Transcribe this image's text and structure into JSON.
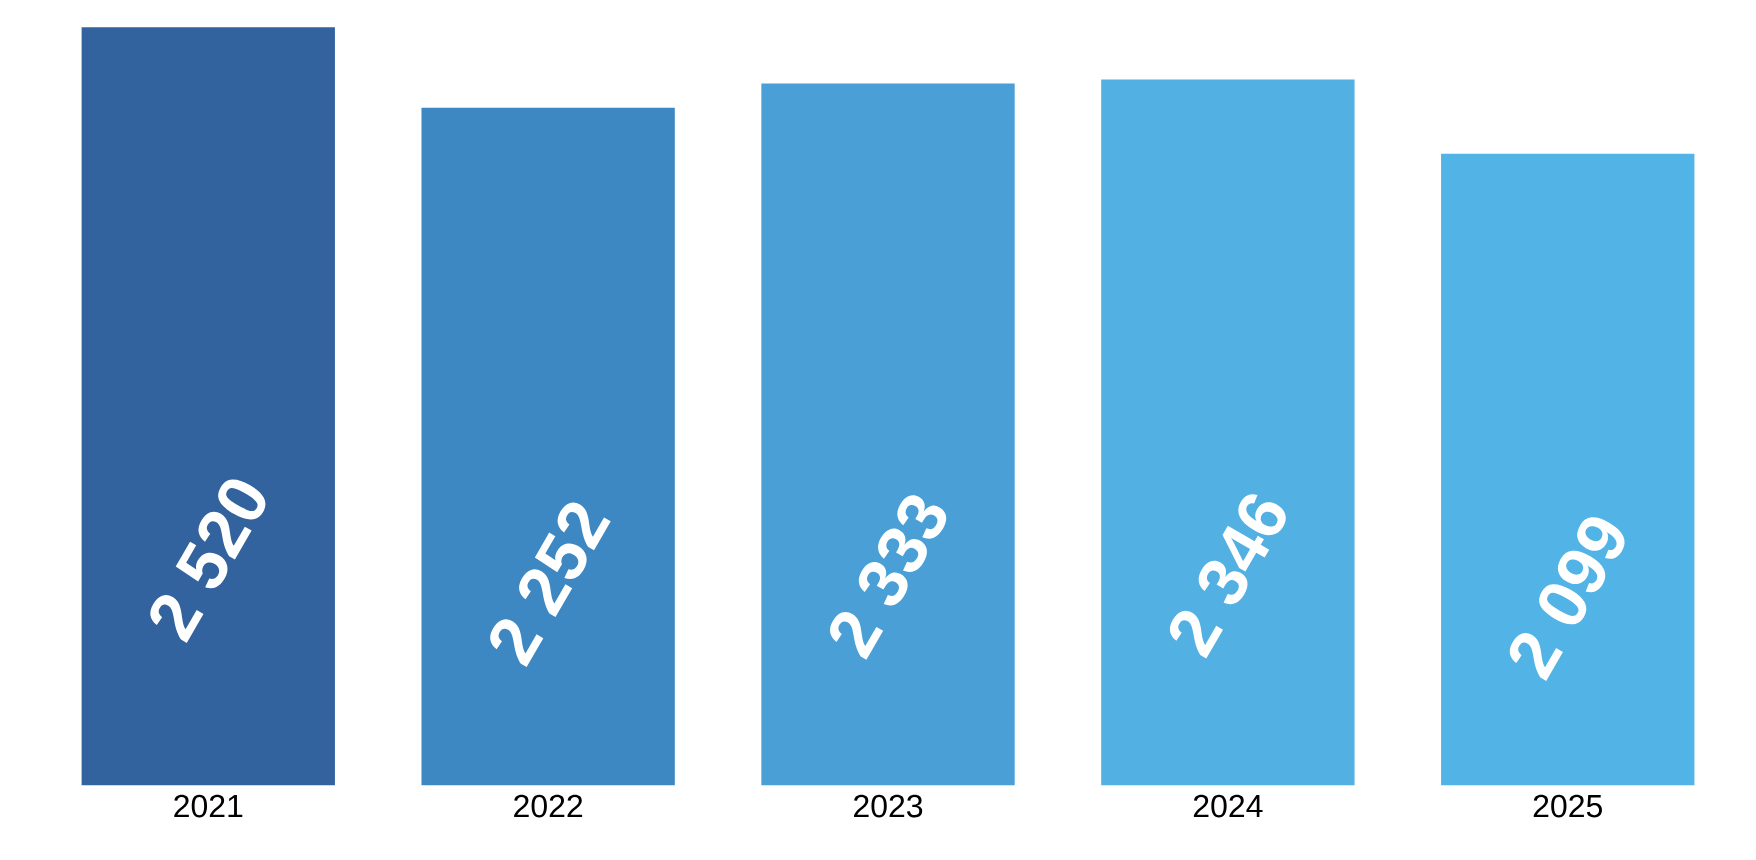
{
  "chart_data": {
    "type": "bar",
    "categories": [
      "2021",
      "2022",
      "2023",
      "2024",
      "2025"
    ],
    "values": [
      2520,
      2252,
      2333,
      2346,
      2099
    ],
    "colors": [
      "#33639f",
      "#3d88c2",
      "#4aa0d6",
      "#52b0e2",
      "#52b4e6"
    ],
    "value_labels": [
      "2 520",
      "2 252",
      "2 333",
      "2 346",
      "2 099"
    ]
  }
}
